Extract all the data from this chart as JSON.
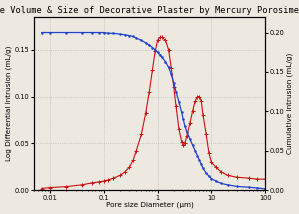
{
  "title": "Pore Volume & Size of Decorative Plaster by Mercury Porosimetry",
  "xlabel": "Pore size Diameter (μm)",
  "ylabel_left": "Log Differential Intrusion (mL/g)",
  "ylabel_right": "Cumulative Intrusion (mL/g)",
  "xlim_left": 100,
  "xlim_right": 0.005,
  "ylim_left": [
    0.0,
    0.185
  ],
  "ylim_right": [
    0.0,
    0.22
  ],
  "background_color": "#ede8e0",
  "grid_color": "#aaaaaa",
  "title_fontsize": 6.2,
  "axis_fontsize": 5.2,
  "tick_fontsize": 4.8,
  "red_x": [
    100,
    70,
    50,
    30,
    20,
    15,
    12,
    10,
    9,
    8,
    7,
    6.5,
    6,
    5.5,
    5,
    4.5,
    4,
    3.5,
    3.2,
    3.0,
    2.8,
    2.5,
    2.2,
    2.0,
    1.8,
    1.6,
    1.4,
    1.2,
    1.1,
    1.0,
    0.9,
    0.8,
    0.7,
    0.6,
    0.5,
    0.4,
    0.35,
    0.3,
    0.25,
    0.2,
    0.15,
    0.12,
    0.1,
    0.08,
    0.06,
    0.04,
    0.02,
    0.01,
    0.007
  ],
  "red_y": [
    0.012,
    0.012,
    0.013,
    0.014,
    0.016,
    0.02,
    0.025,
    0.03,
    0.04,
    0.06,
    0.08,
    0.095,
    0.1,
    0.1,
    0.095,
    0.085,
    0.072,
    0.058,
    0.05,
    0.048,
    0.052,
    0.065,
    0.09,
    0.11,
    0.13,
    0.15,
    0.16,
    0.163,
    0.163,
    0.16,
    0.148,
    0.128,
    0.105,
    0.082,
    0.06,
    0.042,
    0.032,
    0.025,
    0.02,
    0.016,
    0.013,
    0.011,
    0.01,
    0.009,
    0.008,
    0.006,
    0.004,
    0.003,
    0.002
  ],
  "blue_x": [
    100,
    70,
    50,
    30,
    20,
    15,
    12,
    10,
    9,
    8,
    7,
    6.5,
    6,
    5.5,
    5,
    4.5,
    4,
    3.5,
    3.2,
    3.0,
    2.8,
    2.5,
    2.2,
    2.0,
    1.8,
    1.6,
    1.4,
    1.2,
    1.1,
    1.0,
    0.9,
    0.8,
    0.7,
    0.6,
    0.5,
    0.4,
    0.35,
    0.3,
    0.25,
    0.2,
    0.15,
    0.12,
    0.1,
    0.08,
    0.06,
    0.04,
    0.02,
    0.01,
    0.007
  ],
  "blue_y": [
    0.002,
    0.003,
    0.004,
    0.005,
    0.007,
    0.009,
    0.012,
    0.015,
    0.018,
    0.022,
    0.028,
    0.033,
    0.038,
    0.044,
    0.05,
    0.057,
    0.065,
    0.074,
    0.082,
    0.09,
    0.099,
    0.112,
    0.125,
    0.136,
    0.147,
    0.156,
    0.163,
    0.169,
    0.172,
    0.175,
    0.178,
    0.181,
    0.184,
    0.187,
    0.19,
    0.193,
    0.195,
    0.196,
    0.197,
    0.198,
    0.199,
    0.199,
    0.2,
    0.2,
    0.2,
    0.2,
    0.2,
    0.2,
    0.2
  ],
  "blue_color": "#2244cc",
  "red_color": "#cc1111",
  "xticks": [
    100,
    10,
    1,
    0.1,
    0.01
  ],
  "xtick_labels": [
    "100",
    "10",
    "1",
    "0.1",
    "0.01"
  ],
  "yticks_left": [
    0.0,
    0.05,
    0.1,
    0.15
  ],
  "yticks_right": [
    0.0,
    0.05,
    0.1,
    0.15,
    0.2
  ]
}
